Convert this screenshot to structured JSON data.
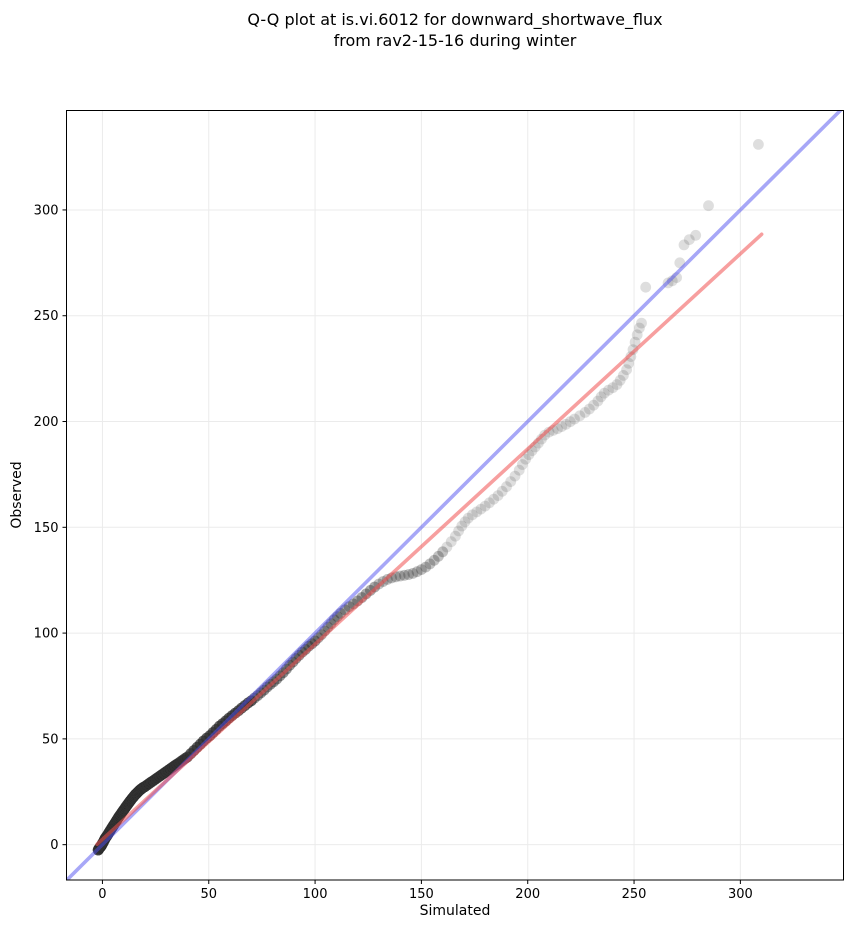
{
  "chart_data": {
    "type": "scatter",
    "title_line1": "Q-Q plot at is.vi.6012 for downward_shortwave_flux",
    "title_line2": "from rav2-15-16 during winter",
    "xlabel": "Simulated",
    "ylabel": "Observed",
    "xlim": [
      -16.9,
      348.5
    ],
    "ylim": [
      -16.7,
      347.0
    ],
    "xticks": [
      0,
      50,
      100,
      150,
      200,
      250,
      300
    ],
    "yticks": [
      0,
      50,
      100,
      150,
      200,
      250,
      300
    ],
    "grid": true,
    "grid_color": "#ebebeb",
    "spine_color": "#000000",
    "legend": "none",
    "identity_line": {
      "name": "identity-1-to-1",
      "from": [
        -16.9,
        -16.9
      ],
      "to": [
        347.0,
        347.0
      ],
      "color": "#5050f0",
      "alpha": 0.5,
      "width": 3.6
    },
    "fit_line": {
      "name": "quantile-fit",
      "from": [
        -2.5,
        0.2
      ],
      "to": [
        310.0,
        288.5
      ],
      "color": "#f05050",
      "alpha": 0.55,
      "width": 3.6
    },
    "marker": {
      "radius_px": 5.4,
      "color": "#303030",
      "alpha": 0.16
    },
    "overdraw": [
      {
        "x_max": 35,
        "repeat": 12
      },
      {
        "x_max": 70,
        "repeat": 8
      },
      {
        "x_max": 100,
        "repeat": 4
      },
      {
        "x_max": 128,
        "repeat": 3
      },
      {
        "x_max": 160,
        "repeat": 2
      },
      {
        "x_max": 10000,
        "repeat": 1
      }
    ],
    "points": [
      [
        -2.0,
        -2.5
      ],
      [
        -1.7,
        -2.0
      ],
      [
        -1.4,
        -1.6
      ],
      [
        -1.1,
        -1.2
      ],
      [
        -0.8,
        -0.9
      ],
      [
        -0.6,
        -0.6
      ],
      [
        -0.4,
        -0.2
      ],
      [
        -0.2,
        0.1
      ],
      [
        0.0,
        0.5
      ],
      [
        0.3,
        1.0
      ],
      [
        0.6,
        1.6
      ],
      [
        0.9,
        2.2
      ],
      [
        1.2,
        2.8
      ],
      [
        1.5,
        3.3
      ],
      [
        2.0,
        4.0
      ],
      [
        2.5,
        4.8
      ],
      [
        3.0,
        5.6
      ],
      [
        3.5,
        6.4
      ],
      [
        4.0,
        7.2
      ],
      [
        4.5,
        8.0
      ],
      [
        5.0,
        8.8
      ],
      [
        5.5,
        9.6
      ],
      [
        6.0,
        10.4
      ],
      [
        6.5,
        11.2
      ],
      [
        7.0,
        12.0
      ],
      [
        7.5,
        12.8
      ],
      [
        8.0,
        13.5
      ],
      [
        8.5,
        14.2
      ],
      [
        9.0,
        15.0
      ],
      [
        9.5,
        15.7
      ],
      [
        10.0,
        16.4
      ],
      [
        10.5,
        17.1
      ],
      [
        11.0,
        17.8
      ],
      [
        11.5,
        18.5
      ],
      [
        12.0,
        19.2
      ],
      [
        12.5,
        19.9
      ],
      [
        13.0,
        20.6
      ],
      [
        13.5,
        21.2
      ],
      [
        14.0,
        21.9
      ],
      [
        14.5,
        22.5
      ],
      [
        15.0,
        23.1
      ],
      [
        15.5,
        23.7
      ],
      [
        16.0,
        24.2
      ],
      [
        16.5,
        24.7
      ],
      [
        17.0,
        25.2
      ],
      [
        17.5,
        25.7
      ],
      [
        18.0,
        26.1
      ],
      [
        18.5,
        26.5
      ],
      [
        19.0,
        26.9
      ],
      [
        19.5,
        27.2
      ],
      [
        20.0,
        27.5
      ],
      [
        21.0,
        28.2
      ],
      [
        22.0,
        28.9
      ],
      [
        23.0,
        29.6
      ],
      [
        24.0,
        30.3
      ],
      [
        25.0,
        31.0
      ],
      [
        26.0,
        31.7
      ],
      [
        27.0,
        32.4
      ],
      [
        28.0,
        33.1
      ],
      [
        29.0,
        33.8
      ],
      [
        30.0,
        34.5
      ],
      [
        31.0,
        35.2
      ],
      [
        32.0,
        35.9
      ],
      [
        33.0,
        36.6
      ],
      [
        34.0,
        37.3
      ],
      [
        35.0,
        38.0
      ],
      [
        36.0,
        38.7
      ],
      [
        37.0,
        39.4
      ],
      [
        38.0,
        40.1
      ],
      [
        39.0,
        40.8
      ],
      [
        40.0,
        41.5
      ],
      [
        41.5,
        43.0
      ],
      [
        43.0,
        44.5
      ],
      [
        44.5,
        46.0
      ],
      [
        46.0,
        47.5
      ],
      [
        47.5,
        49.0
      ],
      [
        49.0,
        50.3
      ],
      [
        50.5,
        51.5
      ],
      [
        52.0,
        53.0
      ],
      [
        53.5,
        54.5
      ],
      [
        55.0,
        56.0
      ],
      [
        56.5,
        57.2
      ],
      [
        58.0,
        58.5
      ],
      [
        59.5,
        59.8
      ],
      [
        61.0,
        61.0
      ],
      [
        62.5,
        62.2
      ],
      [
        64.0,
        63.3
      ],
      [
        65.5,
        64.6
      ],
      [
        67.0,
        65.8
      ],
      [
        68.5,
        67.0
      ],
      [
        70.0,
        68.0
      ],
      [
        71.5,
        69.3
      ],
      [
        73.0,
        70.5
      ],
      [
        74.5,
        71.8
      ],
      [
        76.0,
        73.0
      ],
      [
        77.5,
        74.5
      ],
      [
        79.0,
        75.8
      ],
      [
        80.5,
        77.0
      ],
      [
        82.0,
        78.3
      ],
      [
        83.5,
        79.8
      ],
      [
        85.0,
        81.3
      ],
      [
        86.5,
        83.0
      ],
      [
        88.0,
        84.8
      ],
      [
        89.5,
        86.3
      ],
      [
        91.0,
        88.0
      ],
      [
        92.5,
        89.5
      ],
      [
        94.0,
        91.0
      ],
      [
        95.5,
        92.3
      ],
      [
        97.0,
        93.8
      ],
      [
        98.5,
        95.0
      ],
      [
        100.0,
        96.3
      ],
      [
        101.5,
        97.8
      ],
      [
        103.0,
        99.3
      ],
      [
        104.5,
        101.0
      ],
      [
        106.0,
        102.8
      ],
      [
        107.5,
        104.5
      ],
      [
        109.0,
        106.3
      ],
      [
        110.5,
        107.8
      ],
      [
        112.0,
        109.3
      ],
      [
        114.0,
        111.0
      ],
      [
        116.0,
        112.5
      ],
      [
        118.0,
        113.8
      ],
      [
        120.0,
        115.2
      ],
      [
        122.0,
        116.8
      ],
      [
        124.0,
        118.5
      ],
      [
        126.0,
        120.2
      ],
      [
        128.0,
        121.8
      ],
      [
        130.0,
        123.2
      ],
      [
        132.0,
        124.4
      ],
      [
        134.0,
        125.4
      ],
      [
        136.0,
        126.1
      ],
      [
        138.0,
        126.6
      ],
      [
        140.0,
        127.0
      ],
      [
        142.0,
        127.3
      ],
      [
        144.0,
        127.7
      ],
      [
        146.0,
        128.2
      ],
      [
        148.0,
        129.0
      ],
      [
        150.0,
        130.0
      ],
      [
        152.0,
        131.2
      ],
      [
        154.0,
        132.7
      ],
      [
        156.0,
        134.4
      ],
      [
        158.0,
        136.3
      ],
      [
        160.0,
        138.4
      ],
      [
        162.0,
        140.7
      ],
      [
        164.0,
        143.2
      ],
      [
        166.0,
        145.8
      ],
      [
        167.5,
        148.3
      ],
      [
        169.0,
        150.6
      ],
      [
        170.5,
        152.6
      ],
      [
        172.0,
        154.3
      ],
      [
        174.0,
        155.9
      ],
      [
        176.0,
        157.3
      ],
      [
        178.0,
        158.6
      ],
      [
        180.0,
        160.0
      ],
      [
        182.0,
        161.6
      ],
      [
        184.0,
        163.3
      ],
      [
        186.0,
        165.0
      ],
      [
        188.0,
        167.0
      ],
      [
        190.0,
        169.2
      ],
      [
        192.0,
        171.6
      ],
      [
        194.0,
        174.2
      ],
      [
        196.0,
        177.0
      ],
      [
        197.5,
        179.7
      ],
      [
        199.0,
        182.2
      ],
      [
        200.5,
        184.3
      ],
      [
        202.0,
        186.2
      ],
      [
        203.5,
        188.0
      ],
      [
        205.0,
        189.8
      ],
      [
        206.5,
        191.7
      ],
      [
        208.0,
        193.6
      ],
      [
        210.0,
        195.0
      ],
      [
        212.0,
        195.8
      ],
      [
        214.0,
        196.6
      ],
      [
        216.0,
        197.6
      ],
      [
        218.0,
        198.7
      ],
      [
        220.0,
        199.9
      ],
      [
        222.0,
        201.2
      ],
      [
        224.5,
        202.7
      ],
      [
        227.0,
        204.3
      ],
      [
        229.0,
        205.9
      ],
      [
        231.0,
        207.7
      ],
      [
        233.0,
        209.7
      ],
      [
        234.5,
        211.7
      ],
      [
        236.0,
        213.4
      ],
      [
        238.0,
        214.8
      ],
      [
        240.0,
        216.0
      ],
      [
        242.0,
        217.5
      ],
      [
        243.5,
        219.5
      ],
      [
        245.0,
        221.8
      ],
      [
        246.5,
        224.5
      ],
      [
        247.5,
        227.5
      ],
      [
        248.5,
        230.7
      ],
      [
        249.5,
        234.0
      ],
      [
        250.5,
        237.5
      ],
      [
        251.5,
        241.0
      ],
      [
        252.5,
        244.2
      ],
      [
        253.5,
        246.5
      ],
      [
        255.5,
        263.5
      ],
      [
        266.0,
        265.5
      ],
      [
        268.0,
        266.5
      ],
      [
        270.0,
        268.0
      ],
      [
        271.5,
        275.0
      ],
      [
        273.5,
        283.5
      ],
      [
        276.0,
        286.0
      ],
      [
        279.0,
        288.0
      ],
      [
        285.0,
        302.0
      ],
      [
        308.5,
        331.0
      ]
    ]
  }
}
